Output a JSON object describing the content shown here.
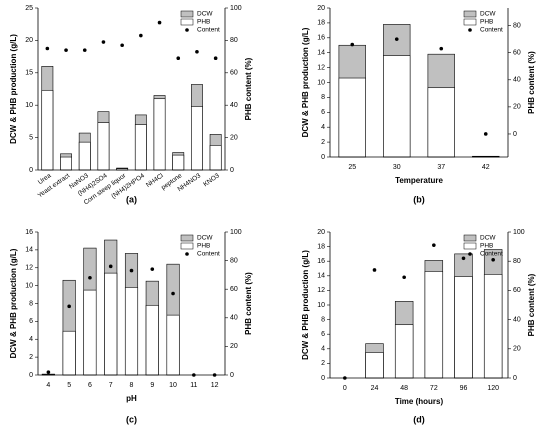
{
  "chart_data": [
    {
      "type": "bar",
      "caption": "(a)",
      "ylabel": "DCW & PHB production (g/L)",
      "y2label": "PHB content (%)",
      "categories": [
        "Urea",
        "Yeast extract",
        "NaNO3",
        "(NH4)2SO4",
        "Corn steep liquor",
        "(NH4)2HPO4",
        "NH4Cl",
        "peptone",
        "NH4NO3",
        "KNO3"
      ],
      "series": [
        {
          "name": "DCW",
          "color": "#c0c0c0",
          "values": [
            16,
            2.5,
            5.7,
            9,
            0.3,
            8.5,
            11.5,
            2.7,
            13.2,
            5.5
          ]
        },
        {
          "name": "PHB",
          "color": "#ffffff",
          "values": [
            12.3,
            2,
            4.3,
            7.3,
            0.2,
            7,
            11,
            2.3,
            9.8,
            3.8
          ]
        },
        {
          "name": "Content",
          "color": "#000000",
          "axis": "y2",
          "values": [
            75,
            74,
            74,
            79,
            77,
            83,
            91,
            69,
            73,
            69
          ]
        }
      ],
      "ylim": [
        0,
        25
      ],
      "yticks": [
        0,
        5,
        10,
        15,
        20,
        25
      ],
      "y2lim": [
        0,
        100
      ],
      "y2ticks": [
        0,
        20,
        40,
        60,
        80,
        100
      ],
      "rotate_labels": true
    },
    {
      "type": "bar",
      "caption": "(b)",
      "xlabel": "Temperature",
      "ylabel": "DCW & PHB production (g/L)",
      "y2label": "PHB content (%)",
      "categories": [
        "25",
        "30",
        "37",
        "42"
      ],
      "series": [
        {
          "name": "DCW",
          "color": "#c0c0c0",
          "values": [
            15,
            17.8,
            13.8,
            0.1
          ]
        },
        {
          "name": "PHB",
          "color": "#ffffff",
          "values": [
            10.6,
            13.6,
            9.3,
            0.05
          ]
        },
        {
          "name": "Content",
          "color": "#000000",
          "axis": "y2",
          "values": [
            66,
            70,
            63,
            0
          ]
        }
      ],
      "ylim": [
        0,
        20
      ],
      "yticks": [
        0,
        2,
        4,
        6,
        8,
        10,
        12,
        14,
        16,
        18,
        20
      ],
      "y2lim": [
        -17,
        93
      ],
      "y2ticks": [
        0,
        20,
        40,
        60,
        80
      ],
      "rotate_labels": false
    },
    {
      "type": "bar",
      "caption": "(c)",
      "xlabel": "pH",
      "ylabel": "DCW & PHB production (g/L)",
      "y2label": "PHB content (%)",
      "categories": [
        "4",
        "5",
        "6",
        "7",
        "8",
        "9",
        "10",
        "11",
        "12"
      ],
      "series": [
        {
          "name": "DCW",
          "color": "#c0c0c0",
          "values": [
            0.1,
            10.6,
            14.2,
            15.1,
            13.6,
            10.5,
            12.4,
            0,
            0
          ]
        },
        {
          "name": "PHB",
          "color": "#ffffff",
          "values": [
            0.05,
            4.9,
            9.5,
            11.4,
            9.8,
            7.8,
            6.7,
            0,
            0
          ]
        },
        {
          "name": "Content",
          "color": "#000000",
          "axis": "y2",
          "values": [
            2,
            48,
            68,
            76,
            73,
            74,
            57,
            0,
            0
          ]
        }
      ],
      "ylim": [
        0,
        16
      ],
      "yticks": [
        0,
        2,
        4,
        6,
        8,
        10,
        12,
        14,
        16
      ],
      "y2lim": [
        0,
        100
      ],
      "y2ticks": [
        0,
        20,
        40,
        60,
        80,
        100
      ],
      "rotate_labels": false
    },
    {
      "type": "bar",
      "caption": "(d)",
      "xlabel": "Time (hours)",
      "ylabel": "DCW & PHB production (g/L)",
      "y2label": "PHB content (%)",
      "categories": [
        "0",
        "24",
        "48",
        "72",
        "96",
        "120"
      ],
      "series": [
        {
          "name": "DCW",
          "color": "#c0c0c0",
          "values": [
            0,
            4.7,
            10.5,
            16.1,
            17,
            17.6
          ]
        },
        {
          "name": "PHB",
          "color": "#ffffff",
          "values": [
            0,
            3.5,
            7.3,
            14.6,
            13.9,
            14.2
          ]
        },
        {
          "name": "Content",
          "color": "#000000",
          "axis": "y2",
          "values": [
            0,
            74,
            69,
            91,
            82,
            81
          ]
        }
      ],
      "ylim": [
        0,
        20
      ],
      "yticks": [
        0,
        2,
        4,
        6,
        8,
        10,
        12,
        14,
        16,
        18,
        20
      ],
      "y2lim": [
        0,
        100
      ],
      "y2ticks": [
        0,
        20,
        40,
        60,
        80,
        100
      ],
      "rotate_labels": false
    }
  ]
}
